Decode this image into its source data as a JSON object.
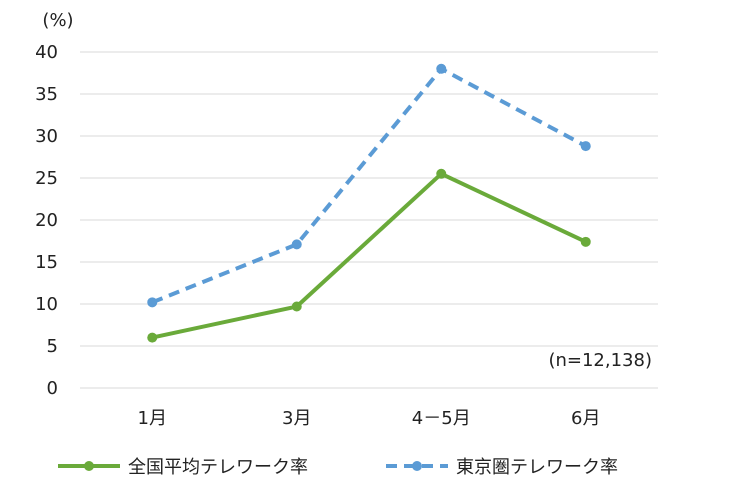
{
  "chart_data": {
    "type": "line",
    "unit_label": "(%)",
    "categories": [
      "1月",
      "3月",
      "4－5月",
      "6月"
    ],
    "ylim": [
      0,
      40
    ],
    "yticks": [
      0,
      5,
      10,
      15,
      20,
      25,
      30,
      35,
      40
    ],
    "grid": true,
    "legend_position": "bottom",
    "annotation": "(n=12,138)",
    "series": [
      {
        "name": "全国平均テレワーク率",
        "values": [
          6.0,
          9.7,
          25.5,
          17.4
        ],
        "color": "#6aaa3a",
        "style": "solid"
      },
      {
        "name": "東京圏テレワーク率",
        "values": [
          10.2,
          17.1,
          38.0,
          28.8
        ],
        "color": "#5b9bd5",
        "style": "dashed"
      }
    ]
  }
}
